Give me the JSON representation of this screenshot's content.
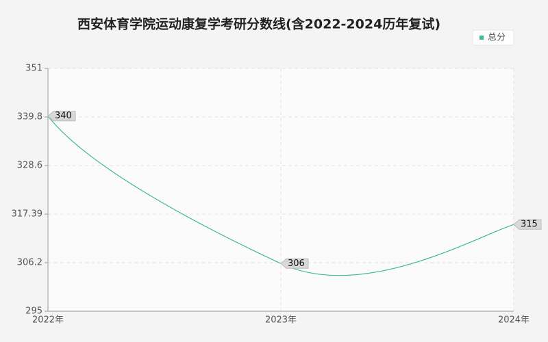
{
  "chart_data": {
    "type": "line",
    "title": "西安体育学院运动康复学考研分数线(含2022-2024历年复试)",
    "categories": [
      "2022年",
      "2023年",
      "2024年"
    ],
    "series": [
      {
        "name": "总分",
        "color": "#3dbb8e",
        "values": [
          340,
          306,
          315
        ]
      }
    ],
    "ylim": [
      295,
      351
    ],
    "yticks": [
      295,
      306.2,
      317.39,
      328.6,
      339.8,
      351
    ],
    "grid": true,
    "legend": "top-right"
  }
}
